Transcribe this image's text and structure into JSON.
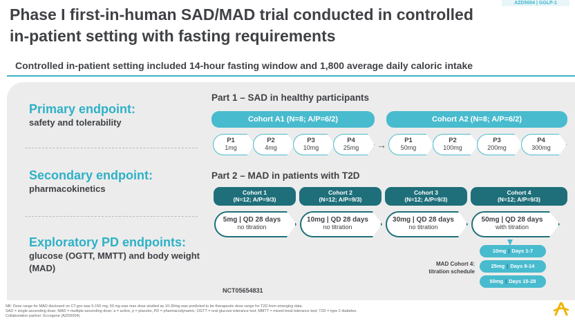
{
  "tag": "AZD5004 | GGLP-1",
  "title": "Phase I first-in-human SAD/MAD trial conducted in controlled in-patient setting with fasting requirements",
  "subtitle": "Controlled in-patient setting included 14-hour fasting window and 1,800 average daily caloric intake",
  "endpoints": {
    "primary": {
      "heading": "Primary endpoint:",
      "text": "safety and tolerability"
    },
    "secondary": {
      "heading": "Secondary endpoint:",
      "text": "pharmacokinetics"
    },
    "exploratory": {
      "heading": "Exploratory PD endpoints:",
      "text": "glucose (OGTT, MMTT) and body weight (MAD)"
    }
  },
  "part1": {
    "title": "Part 1 – SAD in healthy participants",
    "cohorts": [
      {
        "label": "Cohort A1 (N=8; A/P=6/2)",
        "doses": [
          {
            "p": "P1",
            "dose": "1mg"
          },
          {
            "p": "P2",
            "dose": "4mg"
          },
          {
            "p": "P3",
            "dose": "10mg"
          },
          {
            "p": "P4",
            "dose": "25mg"
          }
        ]
      },
      {
        "label": "Cohort A2 (N=8; A/P=6/2)",
        "doses": [
          {
            "p": "P1",
            "dose": "50mg"
          },
          {
            "p": "P2",
            "dose": "100mg"
          },
          {
            "p": "P3",
            "dose": "200mg"
          },
          {
            "p": "P4",
            "dose": "300mg"
          }
        ]
      }
    ]
  },
  "part2": {
    "title": "Part 2 – MAD in patients with T2D",
    "cohorts": [
      {
        "name": "Cohort 1",
        "n": "(N=12; A/P=9/3)",
        "dose": "5mg | QD 28 days",
        "titration": "no titration"
      },
      {
        "name": "Cohort 2",
        "n": "(N=12; A/P=9/3)",
        "dose": "10mg | QD 28 days",
        "titration": "no titration"
      },
      {
        "name": "Cohort 3",
        "n": "(N=12; A/P=9/3)",
        "dose": "30mg | QD 28 days",
        "titration": "no titration"
      },
      {
        "name": "Cohort 4",
        "n": "(N=12; A/P=9/3)",
        "dose": "50mg | QD 28 days",
        "titration": "with titration"
      }
    ],
    "titration_label": [
      "MAD Cohort 4:",
      "titration schedule"
    ],
    "titration": [
      {
        "dose": "10mg",
        "days": "Days 1-7"
      },
      {
        "dose": "25mg",
        "days": "Days 8-14"
      },
      {
        "dose": "50mg",
        "days": "Days 15-28"
      }
    ]
  },
  "nct": "NCT05654831",
  "footnotes": [
    "NB: Dose range for MAD disclosed on CT.gov was 5-150 mg; 50 mg was max dose studied as 10-30mg was predicted to be therapeutic dose range for T2D from emerging data.",
    "SAD = single-ascending dose; MAD = multiple-ascending dose; a = active, p = placebo, PD = pharmacodynamic; OGTT = oral glucose tolerance test; MMTT = mixed-meal tolerance test; T2D = type 2 diabetes.",
    "Collaboration partner: Eccogene (AZD5004)."
  ],
  "colors": {
    "accent": "#3bb4c8",
    "dark_teal": "#1e6f7a",
    "logo": "#f0b400"
  }
}
